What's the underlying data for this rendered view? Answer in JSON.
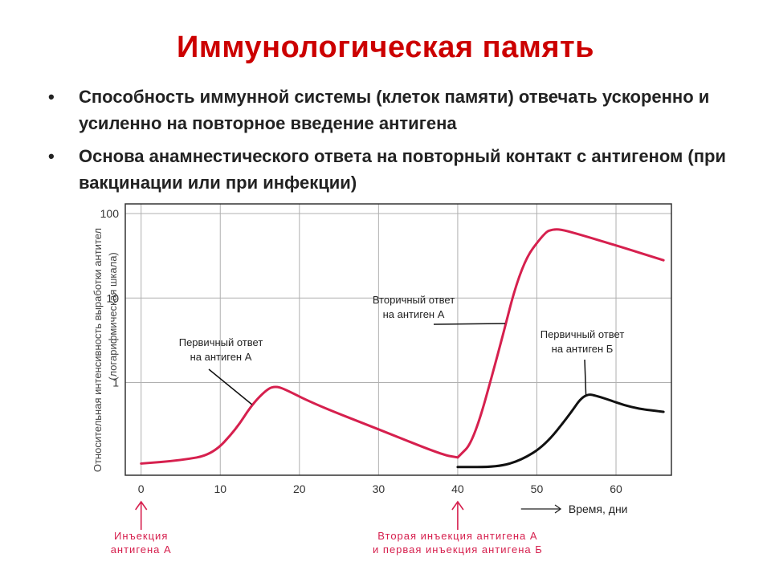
{
  "slide": {
    "title": "Иммунологическая память",
    "bullets": [
      {
        "text": "Способность иммунной системы (клеток памяти) отвечать ускоренно и усиленно на повторное введение антигена"
      },
      {
        "text": "Основа анамнестического ответа на повторный контакт с антигеном (при вакцинации или при инфекции)"
      }
    ]
  },
  "chart_data": {
    "type": "line",
    "ylabel": "Относительная интенсивность выработки антител (логарифмическая шкала)",
    "xlabel": "Время, дни",
    "y_scale": "log",
    "ylim": [
      0.08,
      130
    ],
    "xlim": [
      -2,
      67
    ],
    "x_ticks": [
      "0",
      "10",
      "20",
      "30",
      "40",
      "50",
      "60"
    ],
    "y_ticks": [
      "100",
      "10",
      "1"
    ],
    "grid": true,
    "colors": {
      "antigen_a": "#d6204e",
      "antigen_b": "#111111",
      "injection": "#d6204e"
    },
    "series": [
      {
        "label_lines": [
          "Первичный ответ",
          "на антиген А"
        ],
        "x": [
          0,
          5,
          9,
          12,
          14,
          16,
          17,
          18,
          22,
          30,
          38,
          40
        ],
        "y": [
          0.11,
          0.12,
          0.14,
          0.28,
          0.55,
          0.85,
          0.9,
          0.85,
          0.55,
          0.28,
          0.14,
          0.13
        ]
      },
      {
        "label_lines": [
          "Вторичный ответ",
          "на антиген А"
        ],
        "x": [
          40,
          42,
          45,
          48,
          51,
          52,
          53,
          55,
          60,
          66
        ],
        "y": [
          0.13,
          0.2,
          2,
          25,
          60,
          65,
          65,
          58,
          42,
          28
        ]
      },
      {
        "label_lines": [
          "Первичный ответ",
          "на антиген Б"
        ],
        "x": [
          40,
          45,
          48,
          51,
          54,
          56,
          58,
          62,
          66
        ],
        "y": [
          0.1,
          0.1,
          0.12,
          0.18,
          0.4,
          0.75,
          0.68,
          0.5,
          0.45
        ]
      }
    ],
    "annotations": [
      {
        "x": 0,
        "lines": [
          "Инъекция",
          "антигена А"
        ]
      },
      {
        "x": 40,
        "lines": [
          "Вторая инъекция антигена А",
          "и первая инъекция антигена Б"
        ]
      }
    ]
  }
}
